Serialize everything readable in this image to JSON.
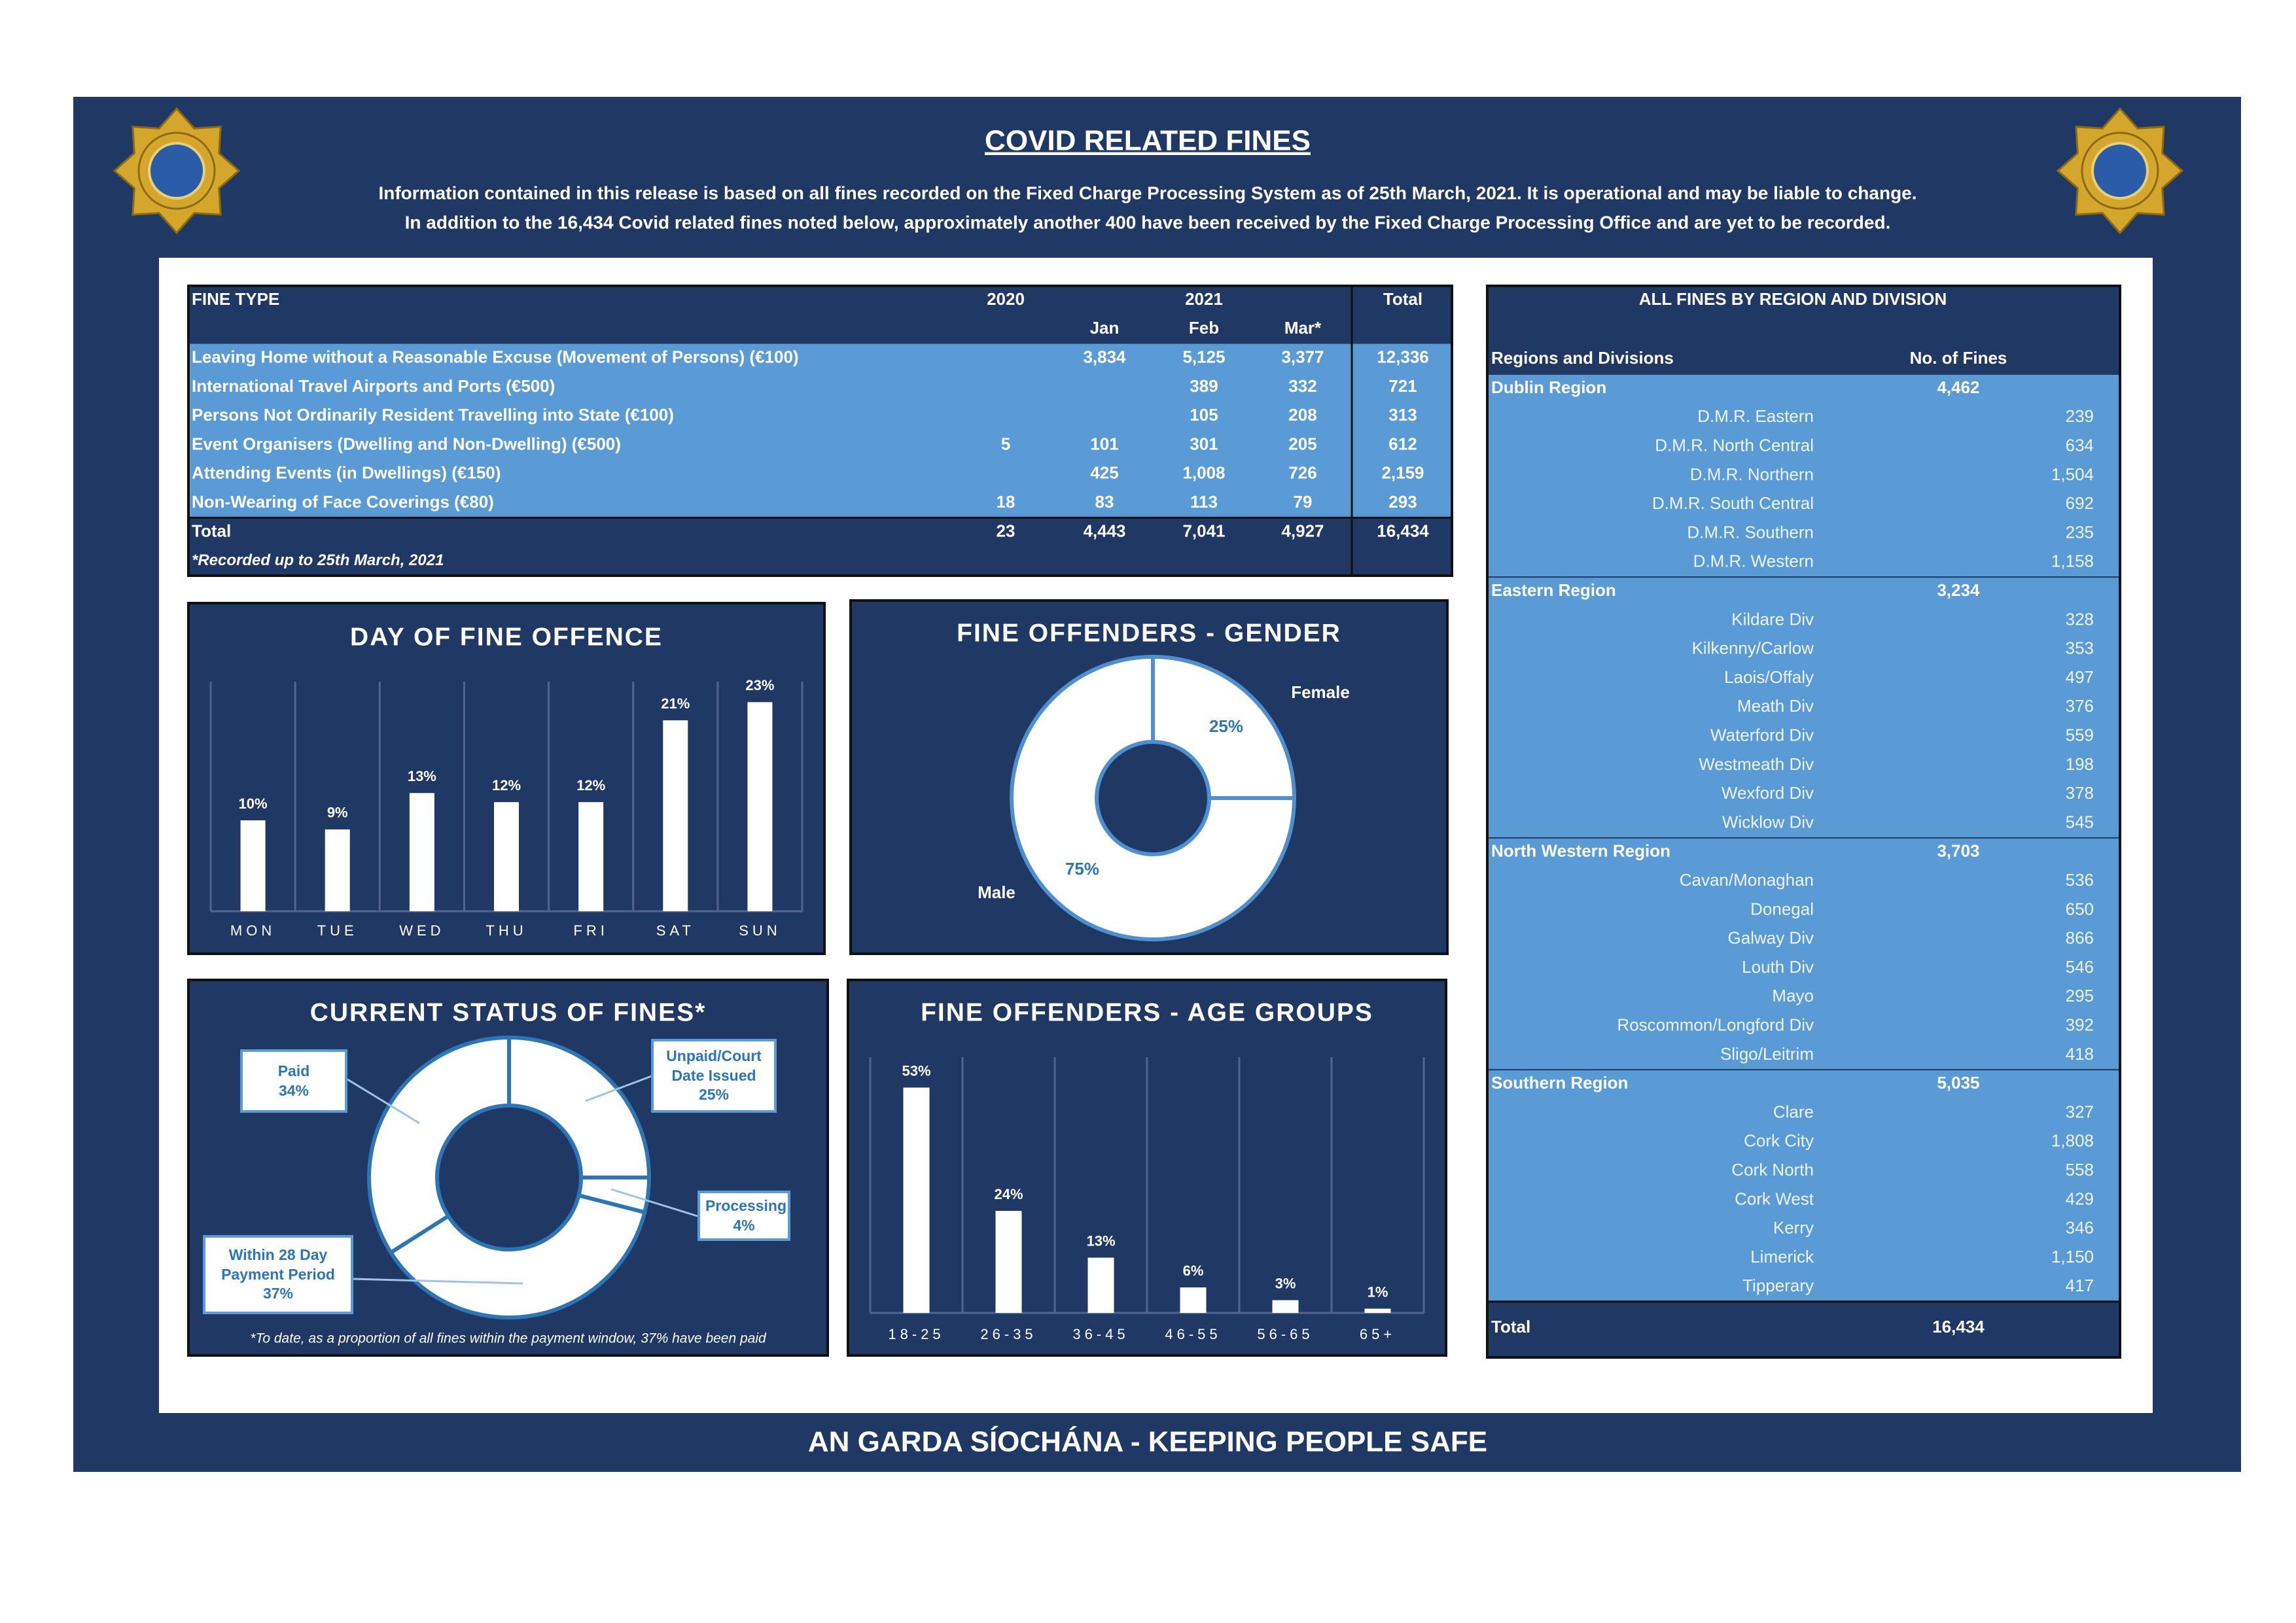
{
  "header": {
    "title": "COVID RELATED FINES",
    "info_lines": [
      "Information contained in this release is based on all fines recorded on the Fixed Charge Processing System as of 25th March, 2021.  It is operational and may be liable to change.",
      "In addition to the 16,434 Covid related fines noted below, approximately another 400 have been received by the Fixed Charge Processing Office and are yet to be recorded."
    ],
    "footer": "AN GARDA SÍOCHÁNA - KEEPING PEOPLE SAFE"
  },
  "fines_table": {
    "columns": {
      "fine_type": "FINE TYPE",
      "y2020": "2020",
      "y2021": "2021",
      "total": "Total"
    },
    "months": [
      "Jan",
      "Feb",
      "Mar*"
    ],
    "rows": [
      {
        "label": "Leaving Home without a Reasonable Excuse (Movement of Persons) (€100)",
        "cells": [
          null,
          "3,834",
          "5,125",
          "3,377",
          "12,336"
        ]
      },
      {
        "label": "International Travel Airports and Ports (€500)",
        "cells": [
          null,
          null,
          "389",
          "332",
          "721"
        ]
      },
      {
        "label": "Persons Not Ordinarily Resident Travelling into State (€100)",
        "cells": [
          null,
          null,
          "105",
          "208",
          "313"
        ]
      },
      {
        "label": "Event Organisers (Dwelling and Non-Dwelling) (€500)",
        "cells": [
          "5",
          "101",
          "301",
          "205",
          "612"
        ]
      },
      {
        "label": "Attending Events (in Dwellings) (€150)",
        "cells": [
          null,
          "425",
          "1,008",
          "726",
          "2,159"
        ]
      },
      {
        "label": "Non-Wearing of Face Coverings (€80)",
        "cells": [
          "18",
          "83",
          "113",
          "79",
          "293"
        ]
      }
    ],
    "total": {
      "label": "Total",
      "cells": [
        "23",
        "4,443",
        "7,041",
        "4,927",
        "16,434"
      ]
    },
    "note": "*Recorded up to 25th March, 2021"
  },
  "regions_table": {
    "title": "ALL FINES BY REGION AND DIVISION",
    "columns": [
      "Regions and Divisions",
      "No. of Fines"
    ],
    "regions": [
      {
        "name": "Dublin Region",
        "total": "4,462",
        "divisions": [
          {
            "name": "D.M.R. Eastern",
            "fines": "239"
          },
          {
            "name": "D.M.R. North Central",
            "fines": "634"
          },
          {
            "name": "D.M.R. Northern",
            "fines": "1,504"
          },
          {
            "name": "D.M.R. South Central",
            "fines": "692"
          },
          {
            "name": "D.M.R. Southern",
            "fines": "235"
          },
          {
            "name": "D.M.R. Western",
            "fines": "1,158"
          }
        ]
      },
      {
        "name": "Eastern Region",
        "total": "3,234",
        "divisions": [
          {
            "name": "Kildare Div",
            "fines": "328"
          },
          {
            "name": "Kilkenny/Carlow",
            "fines": "353"
          },
          {
            "name": "Laois/Offaly",
            "fines": "497"
          },
          {
            "name": "Meath Div",
            "fines": "376"
          },
          {
            "name": "Waterford Div",
            "fines": "559"
          },
          {
            "name": "Westmeath Div",
            "fines": "198"
          },
          {
            "name": "Wexford Div",
            "fines": "378"
          },
          {
            "name": "Wicklow Div",
            "fines": "545"
          }
        ]
      },
      {
        "name": "North Western Region",
        "total": "3,703",
        "divisions": [
          {
            "name": "Cavan/Monaghan",
            "fines": "536"
          },
          {
            "name": "Donegal",
            "fines": "650"
          },
          {
            "name": "Galway Div",
            "fines": "866"
          },
          {
            "name": "Louth Div",
            "fines": "546"
          },
          {
            "name": "Mayo",
            "fines": "295"
          },
          {
            "name": "Roscommon/Longford Div",
            "fines": "392"
          },
          {
            "name": "Sligo/Leitrim",
            "fines": "418"
          }
        ]
      },
      {
        "name": "Southern Region",
        "total": "5,035",
        "divisions": [
          {
            "name": "Clare",
            "fines": "327"
          },
          {
            "name": "Cork City",
            "fines": "1,808"
          },
          {
            "name": "Cork North",
            "fines": "558"
          },
          {
            "name": "Cork West",
            "fines": "429"
          },
          {
            "name": "Kerry",
            "fines": "346"
          },
          {
            "name": "Limerick",
            "fines": "1,150"
          },
          {
            "name": "Tipperary",
            "fines": "417"
          }
        ]
      }
    ],
    "total": {
      "label": "Total",
      "value": "16,434"
    }
  },
  "chart_data": [
    {
      "type": "bar",
      "title": "DAY OF FINE OFFENCE",
      "categories": [
        "MON",
        "TUE",
        "WED",
        "THU",
        "FRI",
        "SAT",
        "SUN"
      ],
      "values": [
        10,
        9,
        13,
        12,
        12,
        21,
        23
      ],
      "value_labels": [
        "10%",
        "9%",
        "13%",
        "12%",
        "12%",
        "21%",
        "23%"
      ],
      "color": "#ffffff"
    },
    {
      "type": "donut",
      "title": "FINE OFFENDERS - GENDER",
      "categories": [
        "Female",
        "Male"
      ],
      "values": [
        25,
        75
      ],
      "value_labels": [
        "25%",
        "75%"
      ],
      "color": "#ffffff"
    },
    {
      "type": "donut",
      "title": "CURRENT STATUS OF FINES*",
      "categories": [
        "Unpaid/Court Date Issued",
        "Processing",
        "Within 28 Day Payment Period",
        "Paid"
      ],
      "values": [
        25,
        4,
        37,
        34
      ],
      "value_labels": [
        "25%",
        "4%",
        "37%",
        "34%"
      ],
      "color": "#ffffff",
      "note": "*To date, as a proportion of all fines within the payment window, 37% have been paid"
    },
    {
      "type": "bar",
      "title": "FINE OFFENDERS - AGE GROUPS",
      "categories": [
        "18-25",
        "26-35",
        "36-45",
        "46-55",
        "56-65",
        "65+"
      ],
      "values": [
        53,
        24,
        13,
        6,
        3,
        1
      ],
      "value_labels": [
        "53%",
        "24%",
        "13%",
        "6%",
        "3%",
        "1%"
      ],
      "color": "#ffffff"
    }
  ]
}
